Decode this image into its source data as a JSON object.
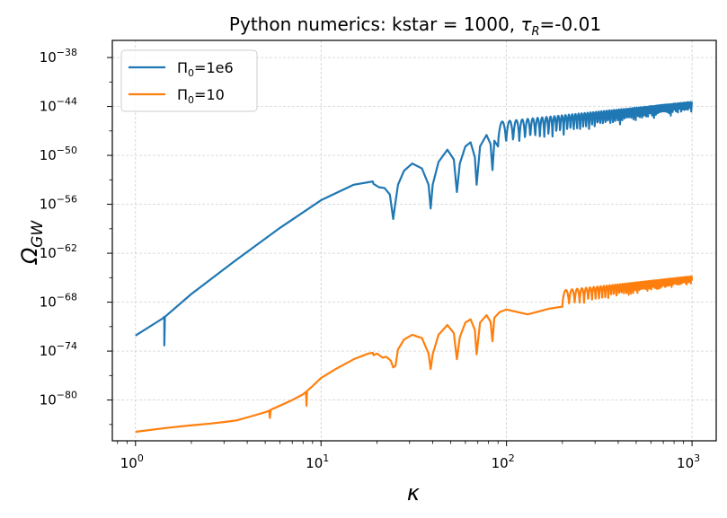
{
  "chart_data": {
    "type": "line",
    "title": {
      "prefix": "Python numerics: kstar = 1000, ",
      "tau": "τ",
      "tau_sub": "R",
      "suffix": "=-0.01"
    },
    "xlabel": "κ",
    "ylabel": {
      "main": "Ω",
      "sub": "GW"
    },
    "xscale": "log",
    "yscale": "log",
    "xlim": [
      0.75,
      1350
    ],
    "ylim_log10": [
      -85.0,
      -35.9
    ],
    "grid": true,
    "legend_position": "upper-left",
    "x_ticks": [
      {
        "value": 1,
        "base": "10",
        "exp": "0"
      },
      {
        "value": 10,
        "base": "10",
        "exp": "1"
      },
      {
        "value": 100,
        "base": "10",
        "exp": "2"
      },
      {
        "value": 1000,
        "base": "10",
        "exp": "3"
      }
    ],
    "y_ticks": [
      {
        "log10": -38,
        "base": "10",
        "exp": "−38"
      },
      {
        "log10": -44,
        "base": "10",
        "exp": "−44"
      },
      {
        "log10": -50,
        "base": "10",
        "exp": "−50"
      },
      {
        "log10": -56,
        "base": "10",
        "exp": "−56"
      },
      {
        "log10": -62,
        "base": "10",
        "exp": "−62"
      },
      {
        "log10": -68,
        "base": "10",
        "exp": "−68"
      },
      {
        "log10": -74,
        "base": "10",
        "exp": "−74"
      },
      {
        "log10": -80,
        "base": "10",
        "exp": "−80"
      }
    ],
    "series": [
      {
        "name": "Π₀=1e6",
        "legend": {
          "sym": "Π",
          "sub": "0",
          "rest": "=1e6"
        },
        "color": "#1f77b4",
        "x": [
          1.0,
          1.4,
          1.43,
          1.43,
          1.44,
          2.0,
          3.5,
          6.0,
          10.0,
          15.0,
          19.0,
          19.2,
          20.5,
          22.0,
          23.5,
          24.5,
          25.0,
          26.0,
          28.0,
          31.0,
          35.0,
          38.0,
          39.0,
          40.0,
          43.0,
          48.0,
          52.0,
          54.0,
          56.0,
          60.0,
          64.0,
          67.5,
          69.0,
          72.0,
          78.0,
          82.0,
          84.0,
          86.0,
          92.0,
          100.0,
          130.0,
          170.0,
          230.0,
          300.0,
          400.0,
          500.0,
          650.0,
          800.0,
          1000.0
        ],
        "log10_y": [
          -72.1,
          -70.0,
          -69.8,
          -73.3,
          -69.8,
          -67.0,
          -62.8,
          -58.9,
          -55.5,
          -53.6,
          -53.2,
          -53.5,
          -53.9,
          -54.0,
          -54.8,
          -57.8,
          -56.3,
          -53.6,
          -51.9,
          -51.0,
          -51.6,
          -53.6,
          -56.5,
          -53.6,
          -50.8,
          -49.3,
          -50.5,
          -54.5,
          -51.0,
          -48.9,
          -48.4,
          -50.2,
          -53.6,
          -48.9,
          -47.5,
          -48.6,
          -51.8,
          -48.2,
          -47.0,
          -46.5,
          -47.5,
          -46.4,
          -44.8,
          -43.6,
          -42.4,
          -41.5,
          -40.3,
          -39.3,
          -38.6
        ],
        "envelope": {
          "x_start": 90,
          "x_end": 1000,
          "period": 0.095,
          "upper_at_100": -45.8,
          "upper_slope": 2.38,
          "depth_peak": 3.0,
          "depth_end": 1.3
        }
      },
      {
        "name": "Π₀=10",
        "legend": {
          "sym": "Π",
          "sub": "0",
          "rest": "=10"
        },
        "color": "#ff7f0e",
        "x": [
          1.0,
          1.5,
          2.0,
          2.5,
          3.0,
          3.5,
          4.2,
          5.0,
          5.25,
          5.3,
          5.35,
          6.0,
          7.0,
          8.0,
          8.3,
          8.35,
          8.4,
          9.0,
          10.0,
          12.0,
          15.0,
          18.0,
          19.0,
          19.2,
          20.0,
          21.5,
          22.5,
          23.8,
          24.5,
          25.2,
          26.0,
          28.0,
          31.0,
          35.0,
          38.0,
          39.0,
          40.0,
          43.0,
          48.0,
          52.0,
          54.0,
          56.0,
          60.0,
          64.0,
          67.5,
          69.0,
          72.0,
          78.0,
          82.0,
          84.0,
          86.0,
          92.0,
          100.0,
          130.0,
          170.0,
          230.0,
          300.0,
          400.0,
          500.0,
          650.0,
          800.0,
          1000.0
        ],
        "log10_y": [
          -83.9,
          -83.4,
          -83.1,
          -82.9,
          -82.7,
          -82.5,
          -82.0,
          -81.5,
          -81.3,
          -82.2,
          -81.2,
          -80.7,
          -80.0,
          -79.3,
          -79.0,
          -80.7,
          -78.9,
          -78.3,
          -77.3,
          -76.2,
          -75.0,
          -74.3,
          -74.2,
          -74.5,
          -74.3,
          -74.8,
          -74.7,
          -75.2,
          -76.0,
          -75.8,
          -73.8,
          -72.6,
          -72.0,
          -72.4,
          -74.3,
          -76.2,
          -74.4,
          -72.0,
          -70.8,
          -71.8,
          -75.0,
          -72.3,
          -70.5,
          -70.1,
          -71.4,
          -74.4,
          -70.5,
          -69.6,
          -70.4,
          -72.8,
          -69.9,
          -69.2,
          -68.9,
          -69.5,
          -68.8,
          -67.4,
          -66.4,
          -65.3,
          -64.4,
          -63.3,
          -62.4,
          -61.4
        ],
        "envelope": {
          "x_start": 200,
          "x_end": 1000,
          "period": 0.08,
          "upper_at_100": -67.3,
          "upper_slope": 2.48,
          "depth_peak": 2.0,
          "depth_end": 1.0
        }
      }
    ]
  }
}
